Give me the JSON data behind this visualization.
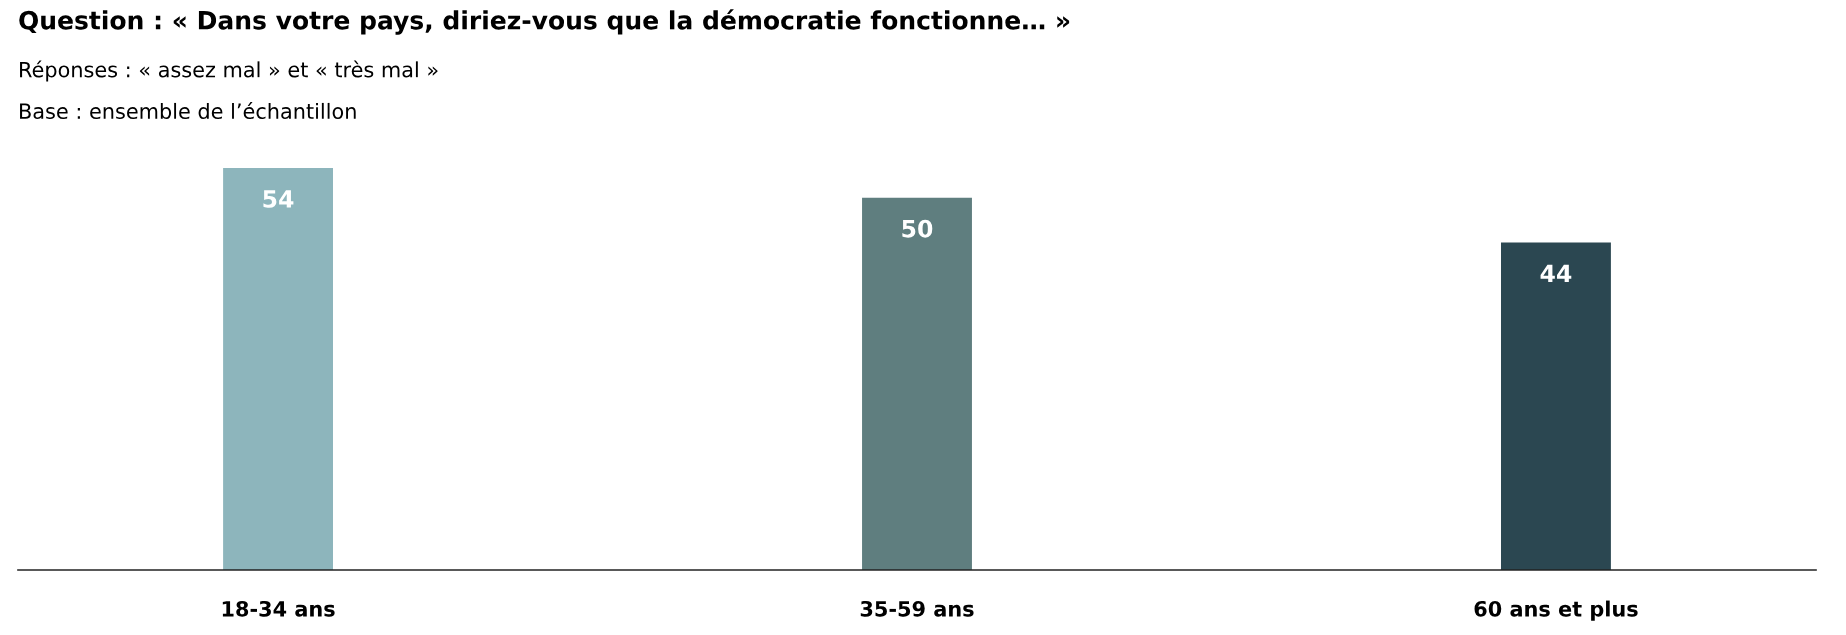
{
  "chart_data": {
    "type": "bar",
    "title": "Question : « Dans votre pays, diriez-vous que la démocratie fonctionne… »",
    "subtitle": "Réponses : « assez mal » et « très mal »",
    "annotations": [
      "Base : ensemble de l’échantillon"
    ],
    "categories": [
      "18-34 ans",
      "35-59 ans",
      "60 ans et plus"
    ],
    "values": [
      54,
      50,
      44
    ],
    "colors": [
      "#8db5bc",
      "#5f7e7f",
      "#2b4751"
    ],
    "data_labels": true,
    "grid": false,
    "legend": false
  }
}
